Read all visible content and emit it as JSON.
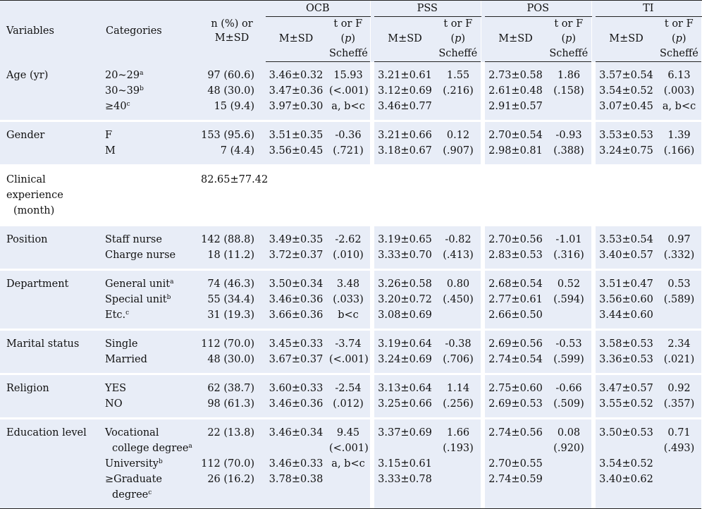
{
  "header": {
    "variables": "Variables",
    "categories": "Categories",
    "n_line1": "n (%) or",
    "n_line2": "M±SD",
    "groups": [
      "OCB",
      "PSS",
      "POS",
      "TI"
    ],
    "msd": "M±SD",
    "tf_line1": "t or F",
    "tf_p": "p",
    "tf_line3": "Scheffé"
  },
  "rows": [
    {
      "variable": "Age (yr)",
      "cats": [
        {
          "t": "20~29",
          "s": "a"
        },
        {
          "t": "30~39",
          "s": "b"
        },
        {
          "t": "≥40",
          "s": "c"
        }
      ],
      "n": [
        "97 (60.6)",
        "48 (30.0)",
        "15 (9.4)"
      ],
      "ocb_m": [
        "3.46±0.32",
        "3.47±0.36",
        "3.97±0.30"
      ],
      "ocb_t": [
        "15.93",
        "(<.001)",
        "a, b<c"
      ],
      "pss_m": [
        "3.21±0.61",
        "3.12±0.69",
        "3.46±0.77"
      ],
      "pss_t": [
        "1.55",
        "(.216)"
      ],
      "pos_m": [
        "2.73±0.58",
        "2.61±0.48",
        "2.91±0.57"
      ],
      "pos_t": [
        "1.86",
        "(.158)"
      ],
      "ti_m": [
        "3.57±0.54",
        "3.54±0.52",
        "3.07±0.45"
      ],
      "ti_t": [
        "6.13",
        "(.003)",
        "a, b<c"
      ]
    },
    {
      "variable": "Gender",
      "cats": [
        {
          "t": "F",
          "s": ""
        },
        {
          "t": "M",
          "s": ""
        }
      ],
      "n": [
        "153 (95.6)",
        "7 (4.4)"
      ],
      "ocb_m": [
        "3.51±0.35",
        "3.56±0.45"
      ],
      "ocb_t": [
        "-0.36",
        "(.721)"
      ],
      "pss_m": [
        "3.21±0.66",
        "3.18±0.67"
      ],
      "pss_t": [
        "0.12",
        "(.907)"
      ],
      "pos_m": [
        "2.70±0.54",
        "2.98±0.81"
      ],
      "pos_t": [
        "-0.93",
        "(.388)"
      ],
      "ti_m": [
        "3.53±0.53",
        "3.24±0.75"
      ],
      "ti_t": [
        "1.39",
        "(.166)"
      ]
    },
    {
      "variable_line1": "Clinical experience",
      "variable_line2": "(month)",
      "n_single": "82.65±77.42"
    },
    {
      "variable": "Position",
      "cats": [
        {
          "t": "Staff nurse",
          "s": ""
        },
        {
          "t": "Charge nurse",
          "s": ""
        }
      ],
      "n": [
        "142 (88.8)",
        "18 (11.2)"
      ],
      "ocb_m": [
        "3.49±0.35",
        "3.72±0.37"
      ],
      "ocb_t": [
        "-2.62",
        "(.010)"
      ],
      "pss_m": [
        "3.19±0.65",
        "3.33±0.70"
      ],
      "pss_t": [
        "-0.82",
        "(.413)"
      ],
      "pos_m": [
        "2.70±0.56",
        "2.83±0.53"
      ],
      "pos_t": [
        "-1.01",
        "(.316)"
      ],
      "ti_m": [
        "3.53±0.54",
        "3.40±0.57"
      ],
      "ti_t": [
        "0.97",
        "(.332)"
      ]
    },
    {
      "variable": "Department",
      "cats": [
        {
          "t": "General unit",
          "s": "a"
        },
        {
          "t": "Special unit",
          "s": "b"
        },
        {
          "t": "Etc.",
          "s": "c"
        }
      ],
      "n": [
        "74 (46.3)",
        "55 (34.4)",
        "31 (19.3)"
      ],
      "ocb_m": [
        "3.50±0.34",
        "3.46±0.36",
        "3.66±0.36"
      ],
      "ocb_t": [
        "3.48",
        "(.033)",
        "b<c"
      ],
      "pss_m": [
        "3.26±0.58",
        "3.20±0.72",
        "3.08±0.69"
      ],
      "pss_t": [
        "0.80",
        "(.450)"
      ],
      "pos_m": [
        "2.68±0.54",
        "2.77±0.61",
        "2.66±0.50"
      ],
      "pos_t": [
        "0.52",
        "(.594)"
      ],
      "ti_m": [
        "3.51±0.47",
        "3.56±0.60",
        "3.44±0.60"
      ],
      "ti_t": [
        "0.53",
        "(.589)"
      ]
    },
    {
      "variable": "Marital status",
      "cats": [
        {
          "t": "Single",
          "s": ""
        },
        {
          "t": "Married",
          "s": ""
        }
      ],
      "n": [
        "112 (70.0)",
        "48 (30.0)"
      ],
      "ocb_m": [
        "3.45±0.33",
        "3.67±0.37"
      ],
      "ocb_t": [
        "-3.74",
        "(<.001)"
      ],
      "pss_m": [
        "3.19±0.64",
        "3.24±0.69"
      ],
      "pss_t": [
        "-0.38",
        "(.706)"
      ],
      "pos_m": [
        "2.69±0.56",
        "2.74±0.54"
      ],
      "pos_t": [
        "-0.53",
        "(.599)"
      ],
      "ti_m": [
        "3.58±0.53",
        "3.36±0.53"
      ],
      "ti_t": [
        "2.34",
        "(.021)"
      ]
    },
    {
      "variable": "Religion",
      "cats": [
        {
          "t": "YES",
          "s": ""
        },
        {
          "t": "NO",
          "s": ""
        }
      ],
      "n": [
        "62 (38.7)",
        "98 (61.3)"
      ],
      "ocb_m": [
        "3.60±0.33",
        "3.46±0.36"
      ],
      "ocb_t": [
        "-2.54",
        "(.012)"
      ],
      "pss_m": [
        "3.13±0.64",
        "3.25±0.66"
      ],
      "pss_t": [
        "1.14",
        "(.256)"
      ],
      "pos_m": [
        "2.75±0.60",
        "2.69±0.53"
      ],
      "pos_t": [
        "-0.66",
        "(.509)"
      ],
      "ti_m": [
        "3.47±0.57",
        "3.55±0.52"
      ],
      "ti_t": [
        "0.92",
        "(.357)"
      ]
    },
    {
      "variable": "Education level",
      "cats": [
        {
          "t": "Vocational",
          "s": ""
        },
        {
          "t": "college degree",
          "s": "a"
        },
        {
          "t": "University",
          "s": "b"
        },
        {
          "t": "≥Graduate",
          "s": ""
        },
        {
          "t": "degree",
          "s": "c"
        }
      ],
      "n": [
        "22 (13.8)",
        "",
        "112 (70.0)",
        "26 (16.2)",
        ""
      ],
      "ocb_m": [
        "3.46±0.34",
        "",
        "3.46±0.33",
        "3.78±0.38",
        ""
      ],
      "ocb_t": [
        "9.45",
        "(<.001)",
        "a, b<c"
      ],
      "pss_m": [
        "3.37±0.69",
        "",
        "3.15±0.61",
        "3.33±0.78",
        ""
      ],
      "pss_t": [
        "1.66",
        "(.193)"
      ],
      "pos_m": [
        "2.74±0.56",
        "",
        "2.70±0.55",
        "2.74±0.59",
        ""
      ],
      "pos_t": [
        "0.08",
        "(.920)"
      ],
      "ti_m": [
        "3.50±0.53",
        "",
        "3.54±0.52",
        "3.40±0.62",
        ""
      ],
      "ti_t": [
        "0.71",
        "(.493)"
      ]
    }
  ]
}
